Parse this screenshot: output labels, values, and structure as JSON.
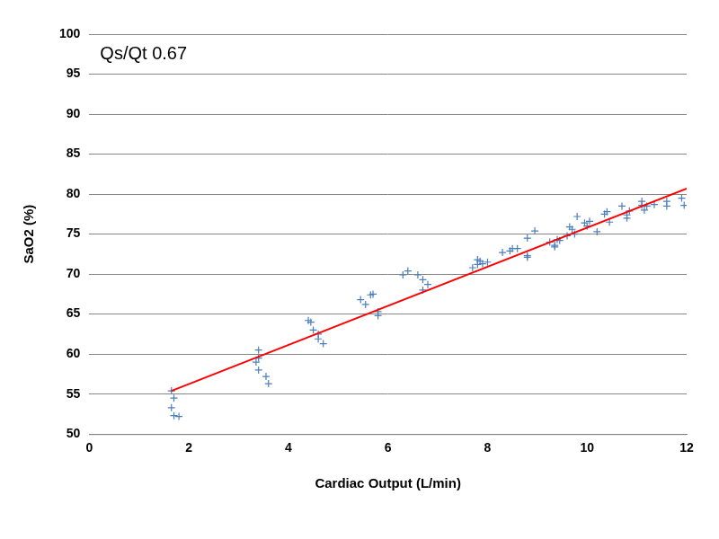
{
  "chart_data": {
    "type": "scatter",
    "annotation": "Qs/Qt 0.67",
    "x_label": "Cardiac Output (L/min)",
    "y_label": "SaO2 (%)",
    "xlim": [
      0,
      12
    ],
    "xticks": [
      0,
      2,
      4,
      6,
      8,
      10,
      12
    ],
    "ylim": [
      50,
      100
    ],
    "yticks": [
      50,
      55,
      60,
      65,
      70,
      75,
      80,
      85,
      90,
      95,
      100
    ],
    "grid": "y",
    "series": [
      {
        "type": "scatter",
        "color": "#4a7ebb",
        "marker": "cross",
        "x": [
          1.65,
          1.7,
          1.65,
          1.7,
          1.8,
          3.4,
          3.35,
          3.4,
          3.55,
          3.6,
          3.4,
          4.4,
          4.45,
          4.5,
          4.6,
          4.6,
          4.7,
          5.45,
          5.55,
          5.65,
          5.7,
          5.8,
          5.8,
          6.3,
          6.4,
          6.6,
          6.7,
          6.7,
          6.8,
          7.7,
          7.8,
          7.85,
          7.8,
          7.9,
          8.0,
          8.3,
          8.45,
          8.5,
          8.6,
          8.8,
          8.8,
          8.8,
          8.95,
          9.25,
          9.35,
          9.35,
          9.4,
          9.45,
          9.6,
          9.65,
          9.7,
          9.75,
          9.8,
          9.95,
          10.0,
          10.05,
          10.2,
          10.35,
          10.4,
          10.45,
          10.7,
          10.8,
          10.8,
          10.85,
          11.1,
          11.1,
          11.15,
          11.2,
          11.35,
          11.6,
          11.6,
          11.9,
          11.95
        ],
        "values": [
          55.4,
          54.5,
          53.3,
          52.3,
          52.2,
          60.5,
          59.0,
          58.0,
          57.2,
          56.3,
          59.5,
          64.2,
          64.0,
          63.0,
          62.5,
          61.9,
          61.3,
          66.8,
          66.2,
          67.4,
          67.5,
          65.3,
          64.8,
          69.9,
          70.4,
          69.9,
          69.3,
          68.0,
          68.7,
          70.8,
          71.8,
          71.6,
          71.2,
          71.3,
          71.5,
          72.7,
          72.9,
          73.2,
          73.2,
          72.3,
          72.1,
          74.5,
          75.4,
          74.0,
          73.6,
          73.4,
          74.3,
          74.2,
          74.8,
          75.9,
          75.6,
          75.0,
          77.2,
          76.4,
          76.0,
          76.6,
          75.3,
          77.5,
          77.8,
          76.5,
          78.5,
          77.4,
          77.0,
          77.9,
          79.1,
          78.6,
          78.0,
          78.5,
          78.7,
          79.1,
          78.5,
          79.5,
          78.6
        ]
      },
      {
        "type": "line",
        "color": "#ff0000",
        "marker": "none",
        "line_style": "solid",
        "x": [
          1.65,
          12
        ],
        "values": [
          55.4,
          80.7
        ]
      }
    ]
  }
}
